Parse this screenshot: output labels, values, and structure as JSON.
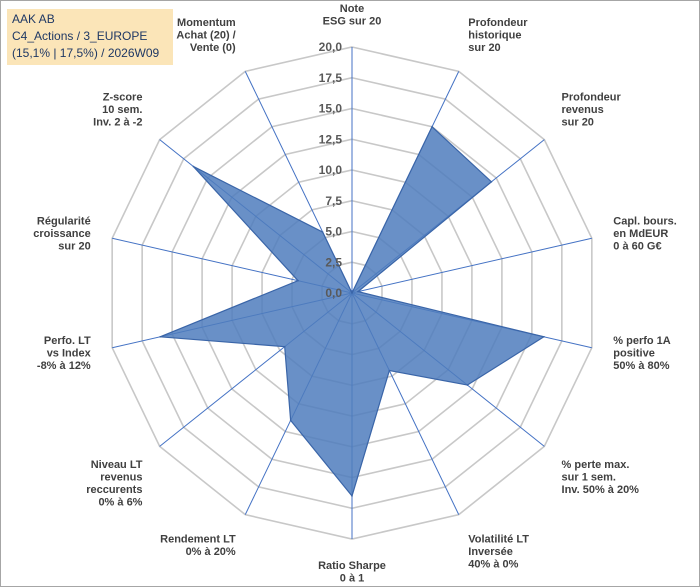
{
  "header": {
    "line1": "AAK AB",
    "line2": "C4_Actions / 3_EUROPE",
    "line3": "(15,1% | 17,5%) / 2026W09"
  },
  "colors": {
    "fill": "#4f7cbd",
    "stroke": "#3a65a8",
    "grid": "#c8c8c8",
    "spoke": "#4472c4",
    "title_bg": "#fbe5b8"
  },
  "chart_data": {
    "type": "radar",
    "rmin": 0,
    "rmax": 20,
    "ticks": [
      "0,0",
      "2,5",
      "5,0",
      "7,5",
      "10,0",
      "12,5",
      "15,0",
      "17,5",
      "20,0"
    ],
    "axes": [
      {
        "lines": [
          "Note",
          "ESG sur 20"
        ]
      },
      {
        "lines": [
          "Profondeur",
          "historique",
          "sur 20"
        ]
      },
      {
        "lines": [
          "Profondeur",
          "revenus",
          "sur 20"
        ]
      },
      {
        "lines": [
          "Capl. bours.",
          "en MdEUR",
          "0 à 60 G€"
        ]
      },
      {
        "lines": [
          "% perfo 1A",
          "positive",
          "50% à 80%"
        ]
      },
      {
        "lines": [
          "% perte max.",
          "sur 1 sem.",
          "Inv. 50% à 20%"
        ]
      },
      {
        "lines": [
          "Volatilité LT",
          "Inversée",
          "40% à 0%"
        ]
      },
      {
        "lines": [
          "Ratio Sharpe",
          "0 à 1"
        ]
      },
      {
        "lines": [
          "Rendement LT",
          "0% à 20%"
        ]
      },
      {
        "lines": [
          "Niveau LT",
          "revenus",
          "reccurents",
          "0% à 6%"
        ]
      },
      {
        "lines": [
          "Perfo. LT",
          "vs Index",
          "-8% à 12%"
        ]
      },
      {
        "lines": [
          "Régularité",
          "croissance",
          "sur 20"
        ]
      },
      {
        "lines": [
          "Z-score",
          "10 sem.",
          "Inv. 2 à -2"
        ]
      },
      {
        "lines": [
          "Momentum",
          "Achat (20) /",
          "Vente (0)"
        ]
      }
    ],
    "values": [
      0.0,
      15.0,
      14.5,
      0.5,
      16.0,
      12.0,
      7.0,
      16.5,
      11.5,
      7.0,
      16.0,
      4.5,
      16.5,
      5.5
    ]
  }
}
